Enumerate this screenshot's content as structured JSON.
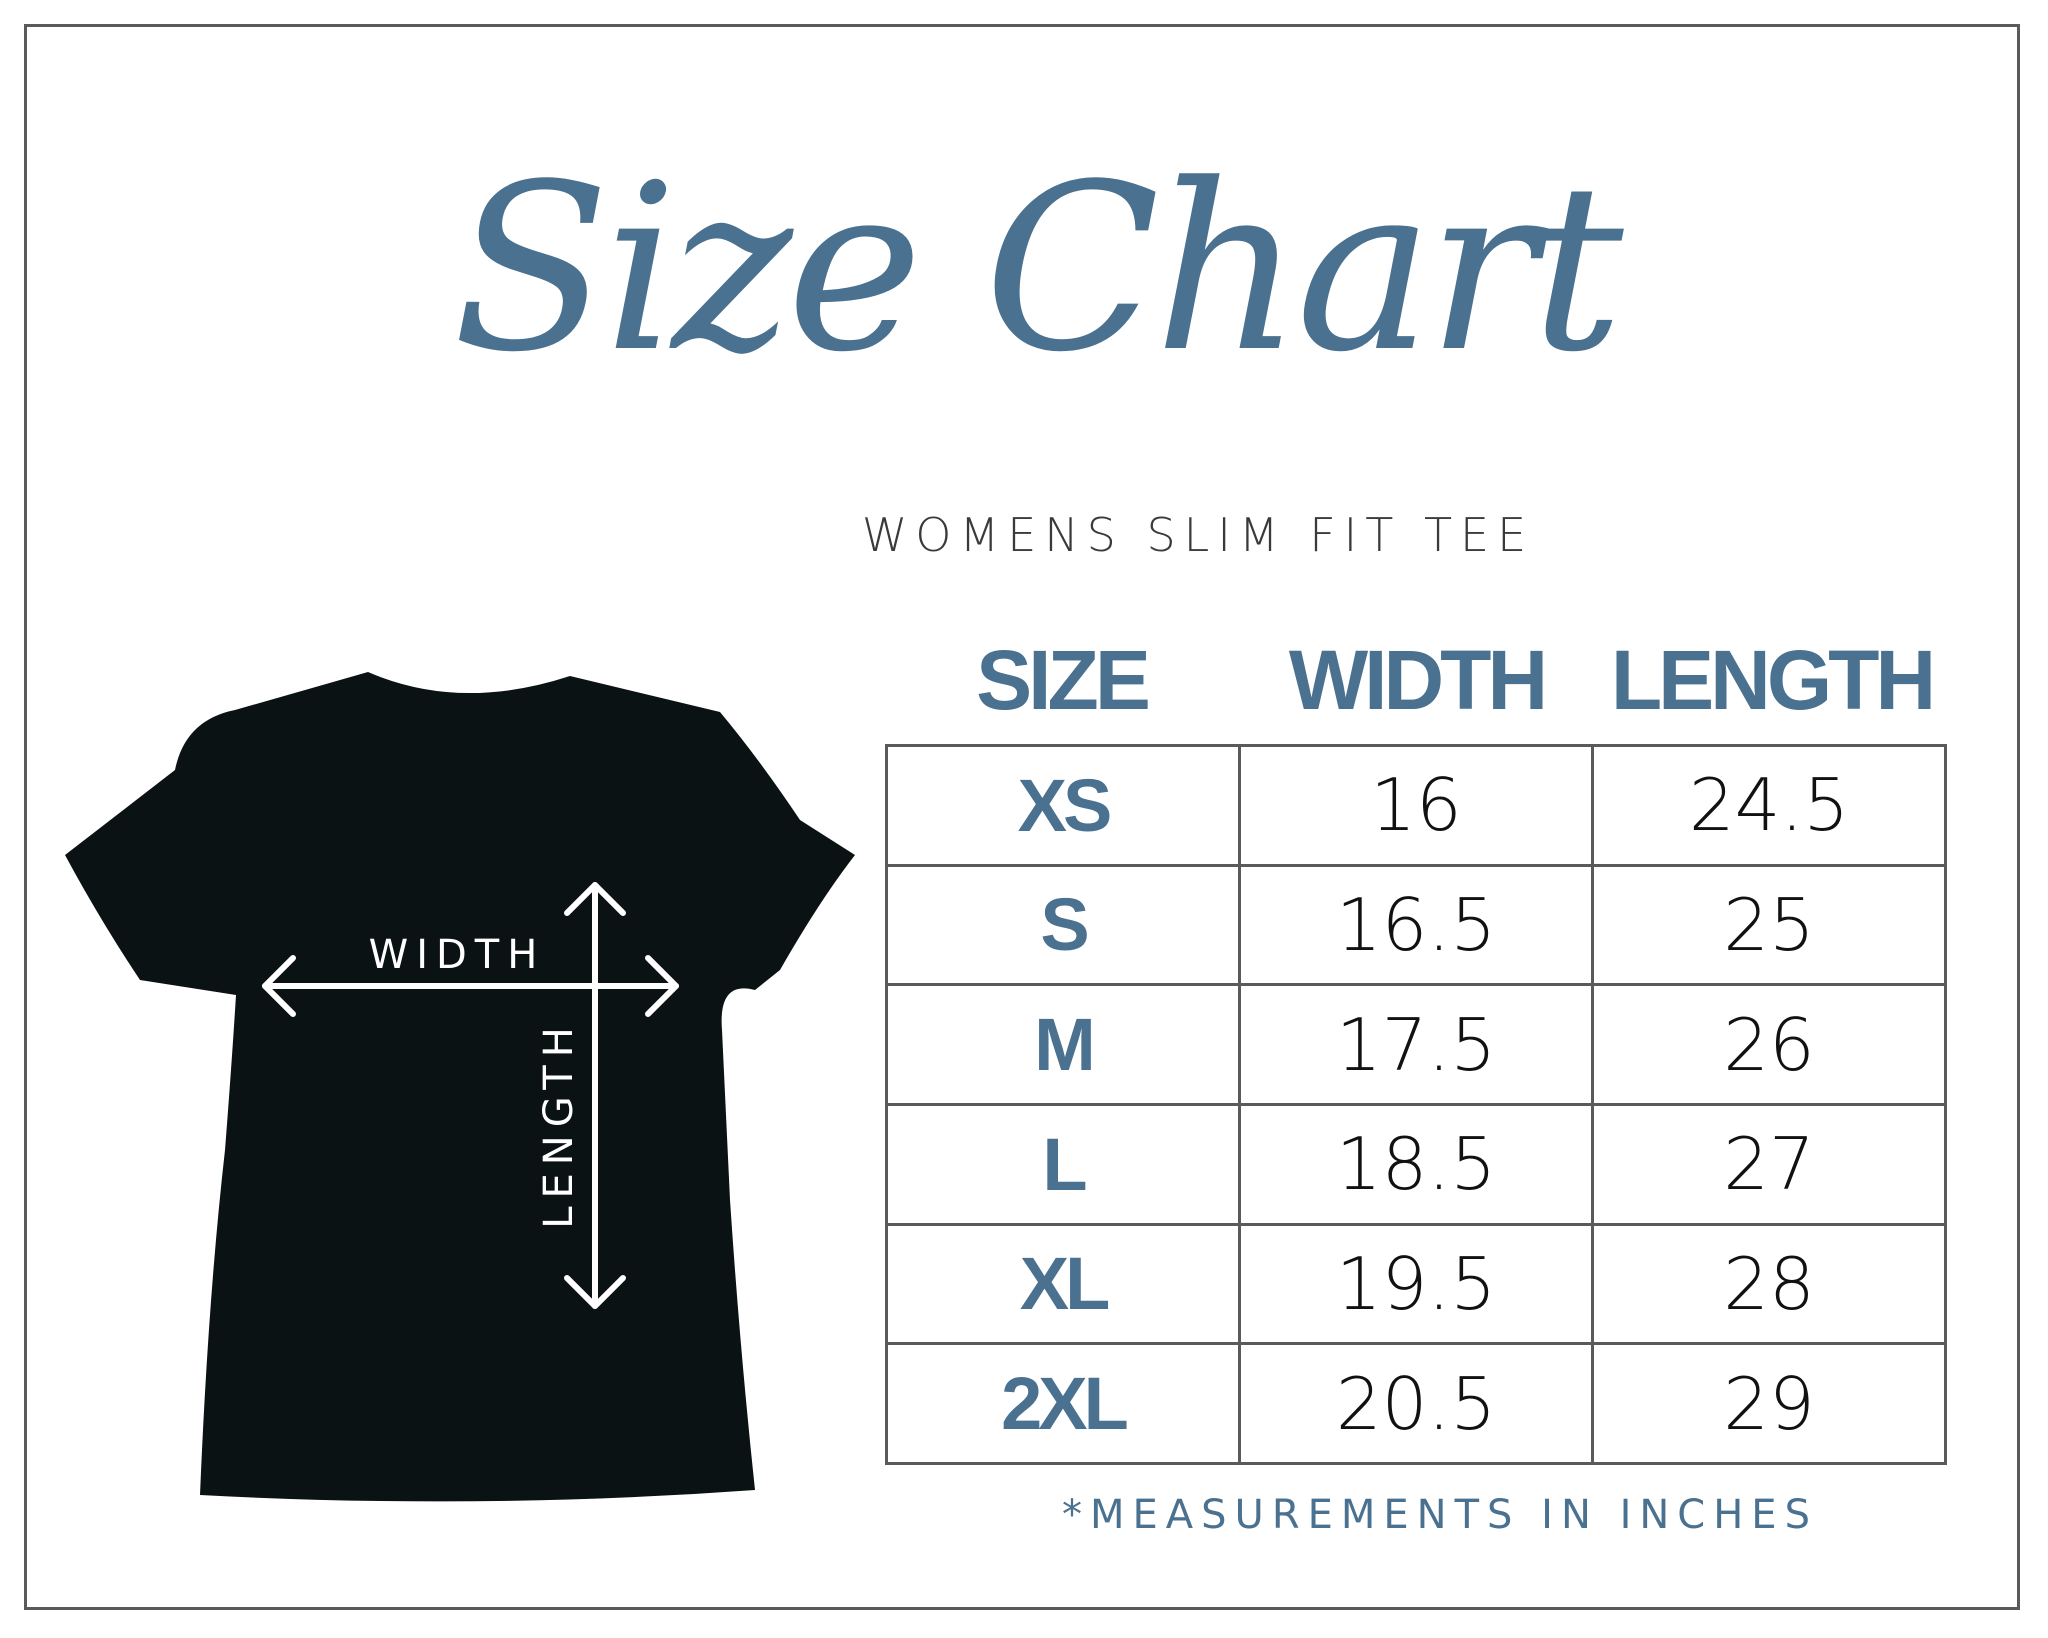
{
  "title": "Size Chart",
  "subtitle": "WOMENS  SLIM  FIT  TEE",
  "colors": {
    "accent": "#4a7190",
    "text": "#111111",
    "border": "#5a5a5a",
    "shirt": "#0b1214"
  },
  "diagram": {
    "width_label": "WIDTH",
    "length_label": "LENGTH"
  },
  "table": {
    "headers": [
      "SIZE",
      "WIDTH",
      "LENGTH"
    ],
    "rows": [
      {
        "size": "XS",
        "width": "16",
        "length": "24.5"
      },
      {
        "size": "S",
        "width": "16.5",
        "length": "25"
      },
      {
        "size": "M",
        "width": "17.5",
        "length": "26"
      },
      {
        "size": "L",
        "width": "18.5",
        "length": "27"
      },
      {
        "size": "XL",
        "width": "19.5",
        "length": "28"
      },
      {
        "size": "2XL",
        "width": "20.5",
        "length": "29"
      }
    ]
  },
  "footnote": "*MEASUREMENTS  IN  INCHES"
}
